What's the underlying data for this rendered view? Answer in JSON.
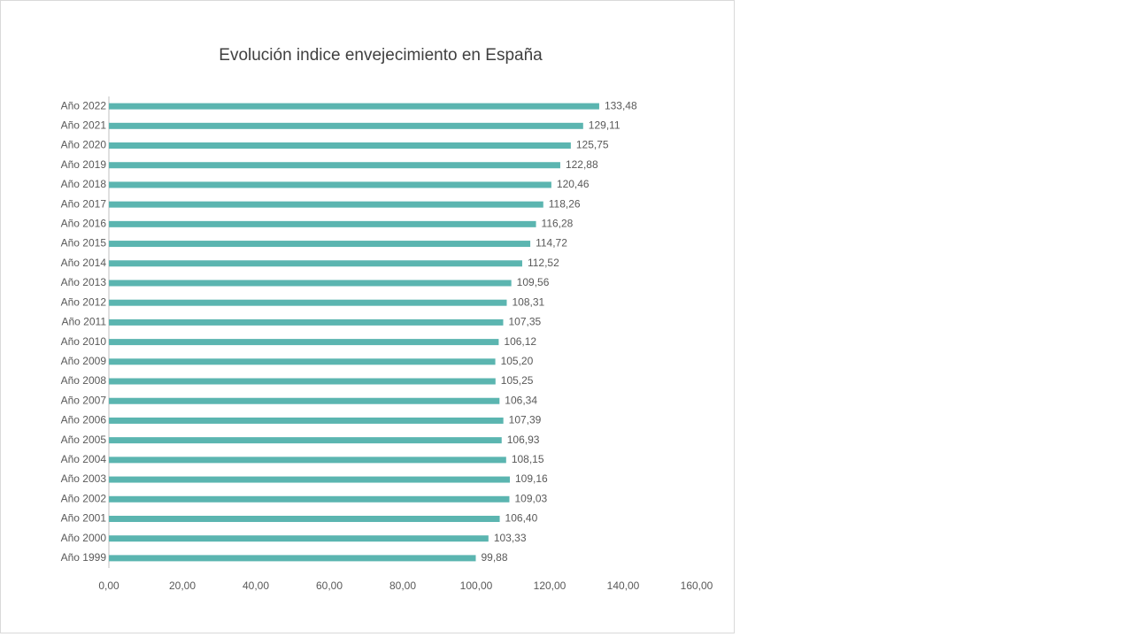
{
  "chart_data": {
    "type": "hbar",
    "title": "Evolución indice envejecimiento en España",
    "categories": [
      "Año 1999",
      "Año 2000",
      "Año 2001",
      "Año 2002",
      "Año 2003",
      "Año 2004",
      "Año 2005",
      "Año 2006",
      "Año 2007",
      "Año 2008",
      "Año 2009",
      "Año 2010",
      "Año 2011",
      "Año 2012",
      "Año 2013",
      "Año 2014",
      "Año 2015",
      "Año 2016",
      "Año 2017",
      "Año 2018",
      "Año 2019",
      "Año 2020",
      "Año 2021",
      "Año 2022"
    ],
    "values": [
      99.88,
      103.33,
      106.4,
      109.03,
      109.16,
      108.15,
      106.93,
      107.39,
      106.34,
      105.25,
      105.2,
      106.12,
      107.35,
      108.31,
      109.56,
      112.52,
      114.72,
      116.28,
      118.26,
      120.46,
      122.88,
      125.75,
      129.11,
      133.48
    ],
    "value_labels": [
      "99,88",
      "103,33",
      "106,40",
      "109,03",
      "109,16",
      "108,15",
      "106,93",
      "107,39",
      "106,34",
      "105,25",
      "105,20",
      "106,12",
      "107,35",
      "108,31",
      "109,56",
      "112,52",
      "114,72",
      "116,28",
      "118,26",
      "120,46",
      "122,88",
      "125,75",
      "129,11",
      "133,48"
    ],
    "color": "#5bb5b0",
    "xlim": [
      0,
      160
    ],
    "xticks": [
      {
        "value": 0,
        "label": "0,00"
      },
      {
        "value": 20,
        "label": "20,00"
      },
      {
        "value": 40,
        "label": "40,00"
      },
      {
        "value": 60,
        "label": "60,00"
      },
      {
        "value": 80,
        "label": "80,00"
      },
      {
        "value": 100,
        "label": "100,00"
      },
      {
        "value": 120,
        "label": "120,00"
      },
      {
        "value": 140,
        "label": "140,00"
      },
      {
        "value": 160,
        "label": "160,00"
      }
    ],
    "grid": false
  }
}
